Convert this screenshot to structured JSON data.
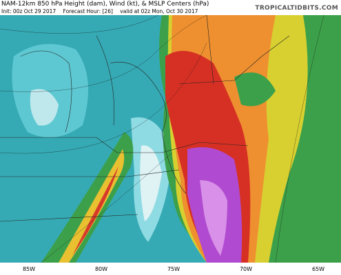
{
  "header": {
    "title": "NAM-12km 850 hPa Height (dam), Wind (kt), & MSLP Centers (hPa)",
    "init": "Init: 00z Oct 29 2017",
    "forecast_hour": "Forecast Hour: [26]",
    "valid": "valid at 02z Mon, Oct 30 2017",
    "source": "TROPICALTIDBITS.COM"
  },
  "map": {
    "longitude_labels": [
      "85W",
      "80W",
      "75W",
      "70W",
      "65W"
    ]
  }
}
